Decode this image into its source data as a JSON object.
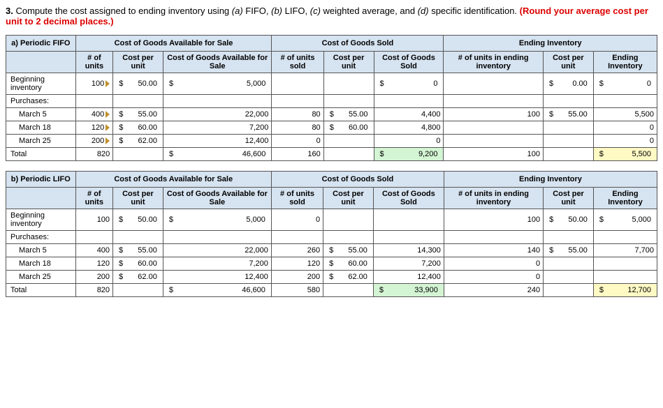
{
  "prompt": {
    "num": "3.",
    "text_a": "Compute the cost assigned to ending inventory using ",
    "i_a": "(a)",
    "t_a": " FIFO, ",
    "i_b": "(b)",
    "t_b": " LIFO, ",
    "i_c": "(c)",
    "t_c": " weighted average, and ",
    "i_d": "(d)",
    "t_d": " specific identification. ",
    "red": "(Round your average cost per unit to 2 decimal places.)"
  },
  "headers": {
    "units": "# of units",
    "cpu": "Cost per unit",
    "cga": "Cost of Goods Available for Sale",
    "cga_short": "Cost of Goods Available for Sale",
    "cgs": "Cost of Goods Sold",
    "ei": "Ending Inventory",
    "units_sold": "# of units sold",
    "cogs": "Cost of Goods Sold",
    "units_end": "# of units in ending inventory",
    "ei_val": "Ending Inventory"
  },
  "rows": {
    "beg": "Beginning inventory",
    "pur": "Purchases:",
    "m5": "March 5",
    "m18": "March 18",
    "m25": "March 25",
    "tot": "Total"
  },
  "fifo": {
    "title": "a) Periodic FIFO",
    "beg": {
      "u": "100",
      "cpu": "50.00",
      "cga": "5,000",
      "us": "",
      "scpu": "",
      "cogs": "0",
      "ue": "",
      "ecpu": "0.00",
      "ei": "0"
    },
    "m5": {
      "u": "400",
      "cpu": "55.00",
      "cga": "22,000",
      "us": "80",
      "scpu": "55.00",
      "cogs": "4,400",
      "ue": "100",
      "ecpu": "55.00",
      "ei": "5,500"
    },
    "m18": {
      "u": "120",
      "cpu": "60.00",
      "cga": "7,200",
      "us": "80",
      "scpu": "60.00",
      "cogs": "4,800",
      "ue": "",
      "ecpu": "",
      "ei": "0"
    },
    "m25": {
      "u": "200",
      "cpu": "62.00",
      "cga": "12,400",
      "us": "0",
      "scpu": "",
      "cogs": "0",
      "ue": "",
      "ecpu": "",
      "ei": "0"
    },
    "tot": {
      "u": "820",
      "cga": "46,600",
      "us": "160",
      "cogs": "9,200",
      "ue": "100",
      "ei": "5,500"
    }
  },
  "lifo": {
    "title": "b) Periodic LIFO",
    "beg": {
      "u": "100",
      "cpu": "50.00",
      "cga": "5,000",
      "us": "0",
      "scpu": "",
      "cogs": "",
      "ue": "100",
      "ecpu": "50.00",
      "ei": "5,000"
    },
    "m5": {
      "u": "400",
      "cpu": "55.00",
      "cga": "22,000",
      "us": "260",
      "scpu": "55.00",
      "cogs": "14,300",
      "ue": "140",
      "ecpu": "55.00",
      "ei": "7,700"
    },
    "m18": {
      "u": "120",
      "cpu": "60.00",
      "cga": "7,200",
      "us": "120",
      "scpu": "60.00",
      "cogs": "7,200",
      "ue": "0",
      "ecpu": "",
      "ei": ""
    },
    "m25": {
      "u": "200",
      "cpu": "62.00",
      "cga": "12,400",
      "us": "200",
      "scpu": "62.00",
      "cogs": "12,400",
      "ue": "0",
      "ecpu": "",
      "ei": ""
    },
    "tot": {
      "u": "820",
      "cga": "46,600",
      "us": "580",
      "cogs": "33,900",
      "ue": "240",
      "ei": "12,700"
    }
  }
}
